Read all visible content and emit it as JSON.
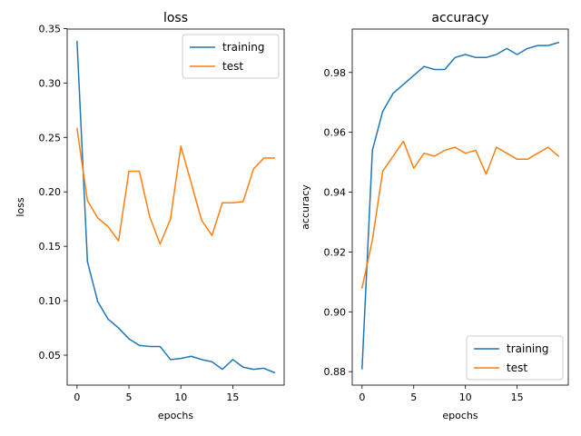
{
  "chart_data": [
    {
      "type": "line",
      "title": "loss",
      "xlabel": "epochs",
      "ylabel": "loss",
      "xlim": [
        -0.95,
        19.95
      ],
      "ylim": [
        0.0225,
        0.3495
      ],
      "xticks": [
        0,
        5,
        10,
        15
      ],
      "xtick_labels": [
        "0",
        "5",
        "10",
        "15"
      ],
      "yticks": [
        0.05,
        0.1,
        0.15,
        0.2,
        0.25,
        0.3,
        0.35
      ],
      "ytick_labels": [
        "0.05",
        "0.10",
        "0.15",
        "0.20",
        "0.25",
        "0.30",
        "0.35"
      ],
      "grid": false,
      "legend_position": "top-right",
      "x": [
        0,
        1,
        2,
        3,
        4,
        5,
        6,
        7,
        8,
        9,
        10,
        11,
        12,
        13,
        14,
        15,
        16,
        17,
        18,
        19
      ],
      "series": [
        {
          "name": "training",
          "color": "#1f77b4",
          "values": [
            0.338,
            0.136,
            0.099,
            0.083,
            0.075,
            0.065,
            0.059,
            0.058,
            0.058,
            0.046,
            0.047,
            0.049,
            0.046,
            0.044,
            0.037,
            0.046,
            0.039,
            0.037,
            0.038,
            0.034
          ]
        },
        {
          "name": "test",
          "color": "#ff7f0e",
          "values": [
            0.258,
            0.192,
            0.176,
            0.168,
            0.155,
            0.219,
            0.219,
            0.177,
            0.152,
            0.175,
            0.242,
            0.208,
            0.174,
            0.16,
            0.19,
            0.19,
            0.191,
            0.221,
            0.231,
            0.231
          ]
        }
      ]
    },
    {
      "type": "line",
      "title": "accuracy",
      "xlabel": "epochs",
      "ylabel": "accuracy",
      "xlim": [
        -0.95,
        19.95
      ],
      "ylim": [
        0.8755,
        0.9945
      ],
      "xticks": [
        0,
        5,
        10,
        15
      ],
      "xtick_labels": [
        "0",
        "5",
        "10",
        "15"
      ],
      "yticks": [
        0.88,
        0.9,
        0.92,
        0.94,
        0.96,
        0.98
      ],
      "ytick_labels": [
        "0.88",
        "0.90",
        "0.92",
        "0.94",
        "0.96",
        "0.98"
      ],
      "grid": false,
      "legend_position": "bottom-right",
      "x": [
        0,
        1,
        2,
        3,
        4,
        5,
        6,
        7,
        8,
        9,
        10,
        11,
        12,
        13,
        14,
        15,
        16,
        17,
        18,
        19
      ],
      "series": [
        {
          "name": "training",
          "color": "#1f77b4",
          "values": [
            0.881,
            0.954,
            0.967,
            0.973,
            0.976,
            0.979,
            0.982,
            0.981,
            0.981,
            0.985,
            0.986,
            0.985,
            0.985,
            0.986,
            0.988,
            0.986,
            0.988,
            0.989,
            0.989,
            0.99
          ]
        },
        {
          "name": "test",
          "color": "#ff7f0e",
          "values": [
            0.908,
            0.924,
            0.947,
            0.952,
            0.957,
            0.948,
            0.953,
            0.952,
            0.954,
            0.955,
            0.953,
            0.954,
            0.946,
            0.955,
            0.953,
            0.951,
            0.951,
            0.953,
            0.955,
            0.952
          ]
        }
      ]
    }
  ]
}
